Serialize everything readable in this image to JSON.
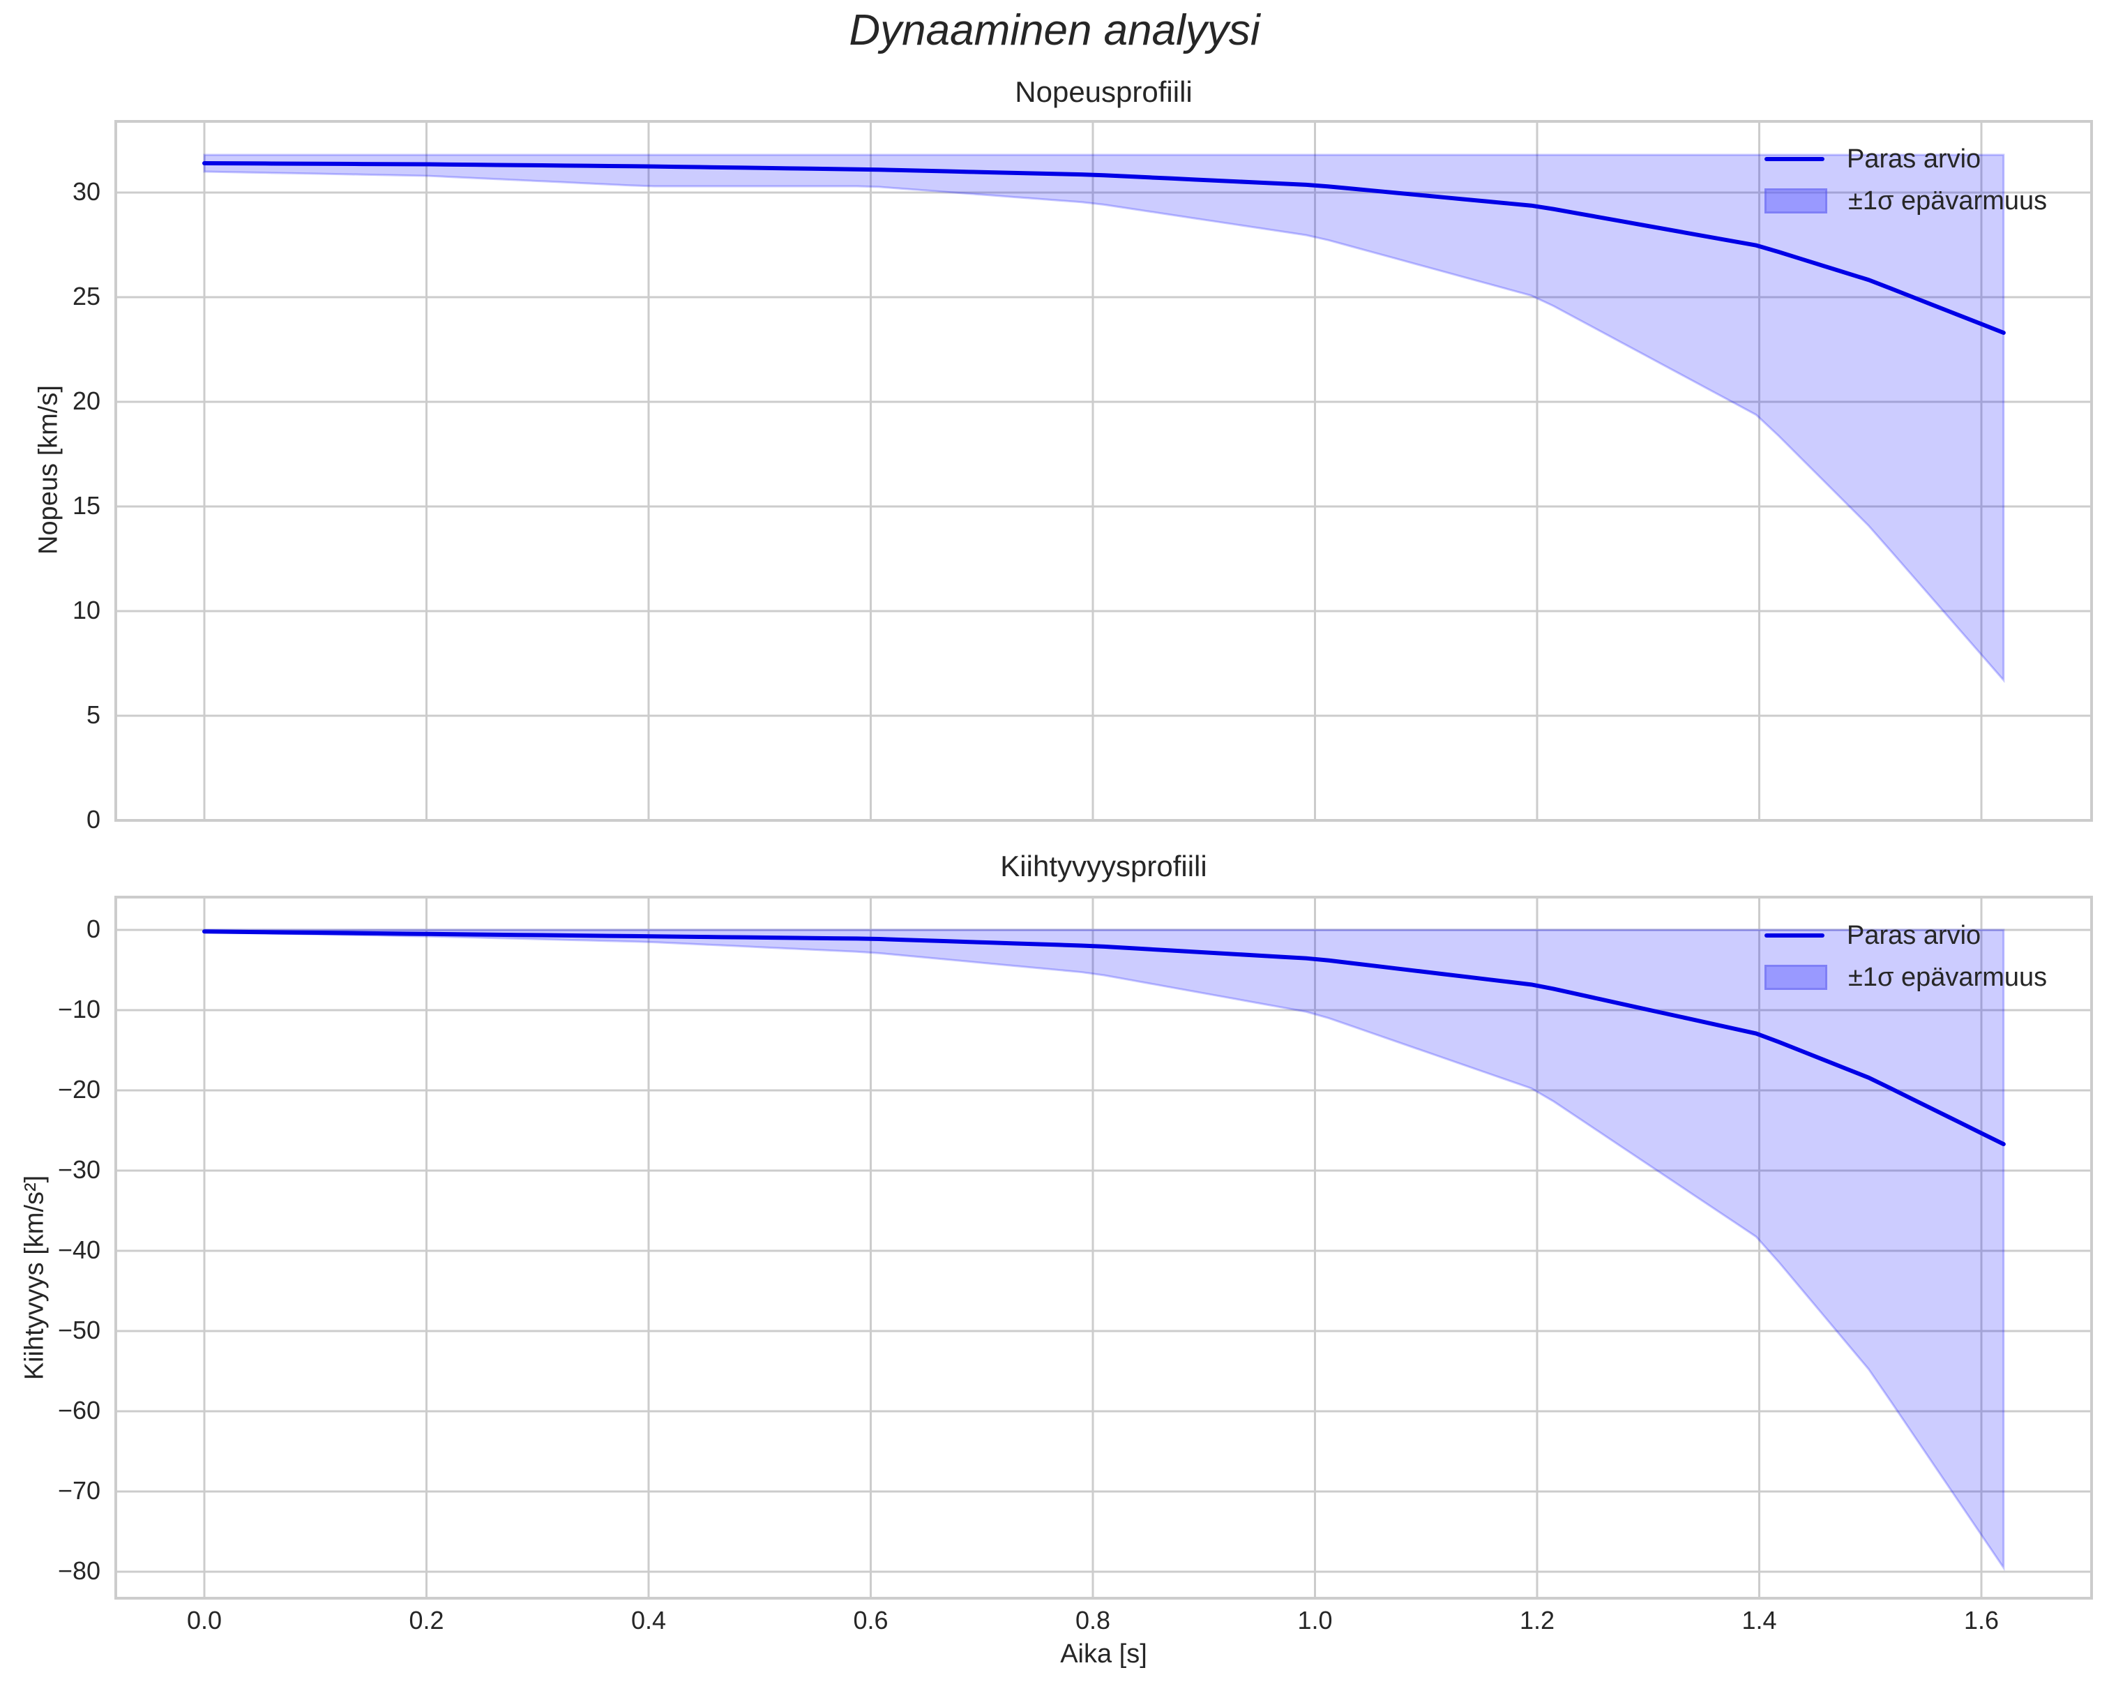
{
  "figure": {
    "suptitle": "Dynaaminen analyysi",
    "xlabel": "Aika [s]"
  },
  "colors": {
    "line": "#0000e6",
    "band_fill": "#ccccff",
    "band_edge": "#9999f0",
    "grid": "#cccccc"
  },
  "chart_data": [
    {
      "type": "line",
      "title": "Nopeusprofiili",
      "xlabel": "",
      "ylabel": "Nopeus [km/s]",
      "xlim": [
        -0.08,
        1.7
      ],
      "ylim": [
        0,
        33.2
      ],
      "xticks": [
        "0.0",
        "0.2",
        "0.4",
        "0.6",
        "0.8",
        "1.0",
        "1.2",
        "1.4",
        "1.6"
      ],
      "yticks": [
        "0",
        "5",
        "10",
        "15",
        "20",
        "25",
        "30"
      ],
      "grid": true,
      "legend": {
        "position": "upper right",
        "entries": [
          "Paras arvio",
          "±1σ epävarmuus"
        ]
      },
      "x": [
        0.0,
        0.2,
        0.4,
        0.6,
        0.8,
        1.0,
        1.2,
        1.4,
        1.5,
        1.62
      ],
      "series": [
        {
          "name": "Paras arvio",
          "values": [
            31.4,
            31.35,
            31.25,
            31.1,
            30.85,
            30.35,
            29.35,
            27.45,
            25.8,
            23.3
          ]
        },
        {
          "name": "±1σ epävarmuus (ylä)",
          "values": [
            31.8,
            31.8,
            31.8,
            31.8,
            31.8,
            31.8,
            31.8,
            31.8,
            31.8,
            31.8
          ]
        },
        {
          "name": "±1σ epävarmuus (ala)",
          "values": [
            31.0,
            30.8,
            30.3,
            30.3,
            29.5,
            27.9,
            25.0,
            19.3,
            14.0,
            6.7
          ]
        }
      ]
    },
    {
      "type": "line",
      "title": "Kiihtyvyysprofiili",
      "xlabel": "Aika [s]",
      "ylabel": "Kiihtyvyys [km/s²]",
      "xlim": [
        -0.08,
        1.7
      ],
      "ylim": [
        -83.5,
        4
      ],
      "xticks": [
        "0.0",
        "0.2",
        "0.4",
        "0.6",
        "0.8",
        "1.0",
        "1.2",
        "1.4",
        "1.6"
      ],
      "yticks": [
        "0",
        "−10",
        "−20",
        "−30",
        "−40",
        "−50",
        "−60",
        "−70",
        "−80"
      ],
      "grid": true,
      "legend": {
        "position": "upper right",
        "entries": [
          "Paras arvio",
          "±1σ epävarmuus"
        ]
      },
      "x": [
        0.0,
        0.2,
        0.4,
        0.6,
        0.8,
        1.0,
        1.2,
        1.4,
        1.5,
        1.62
      ],
      "series": [
        {
          "name": "Paras arvio",
          "values": [
            -0.2,
            -0.5,
            -0.8,
            -1.1,
            -2.0,
            -3.6,
            -6.9,
            -13.0,
            -18.5,
            -26.7
          ]
        },
        {
          "name": "±1σ epävarmuus (ylä)",
          "values": [
            0,
            0,
            0,
            0,
            0,
            0,
            0,
            0,
            0,
            0
          ]
        },
        {
          "name": "±1σ epävarmuus (ala)",
          "values": [
            -0.3,
            -0.8,
            -1.5,
            -2.8,
            -5.4,
            -10.4,
            -20.0,
            -38.5,
            -55.0,
            -79.5
          ]
        }
      ]
    }
  ]
}
